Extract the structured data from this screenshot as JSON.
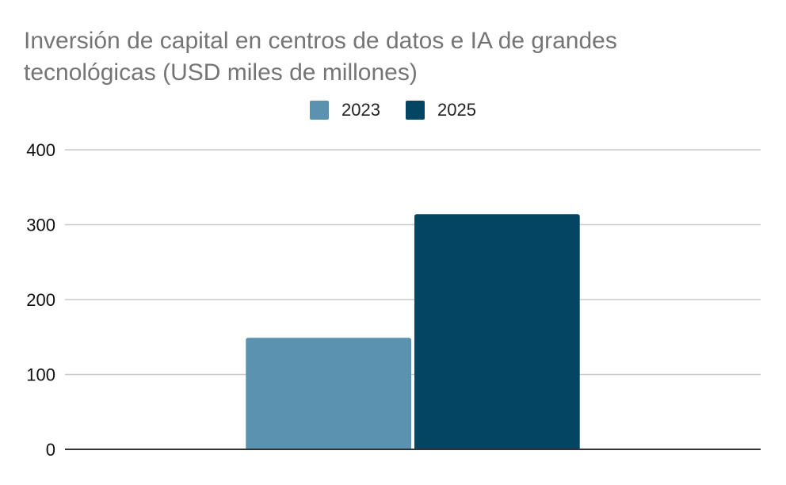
{
  "chart_data": {
    "type": "bar",
    "title": "Inversión de capital en centros de datos e IA de grandes tecnológicas (USD miles de millones)",
    "xlabel": "",
    "ylabel": "",
    "categories": [
      ""
    ],
    "series": [
      {
        "name": "2023",
        "color": "#5b92b0",
        "values": [
          149
        ]
      },
      {
        "name": "2025",
        "color": "#034563",
        "values": [
          314
        ]
      }
    ],
    "ylim": [
      0,
      400
    ],
    "yticks": [
      0,
      100,
      200,
      300,
      400
    ],
    "ytick_labels": [
      "0",
      "100",
      "200",
      "300",
      "400"
    ],
    "grid": true,
    "legend_position": "top-center"
  }
}
